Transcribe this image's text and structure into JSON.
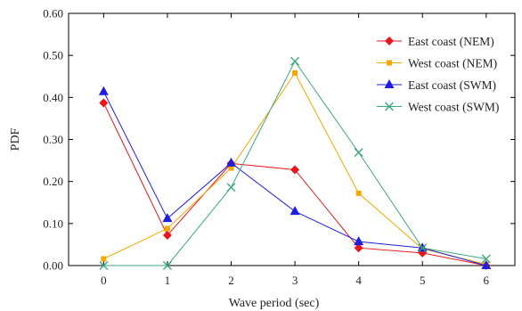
{
  "chart_data": {
    "type": "line",
    "xlabel": "Wave period (sec)",
    "ylabel": "PDF",
    "x": [
      0,
      1,
      2,
      3,
      4,
      5,
      6
    ],
    "xlim": [
      -0.55,
      6.45
    ],
    "ylim": [
      0,
      0.6
    ],
    "x_ticks": [
      "0",
      "1",
      "2",
      "3",
      "4",
      "5",
      "6"
    ],
    "y_ticks": [
      "0.00",
      "0.10",
      "0.20",
      "0.30",
      "0.40",
      "0.50",
      "0.60"
    ],
    "grid": false,
    "legend_position": "top-right",
    "series": [
      {
        "name": "East coast (NEM)",
        "color": "#e8161b",
        "marker": "diamond",
        "values": [
          0.387,
          0.072,
          0.243,
          0.228,
          0.042,
          0.03,
          0.0
        ]
      },
      {
        "name": "West coast (NEM)",
        "color": "#f5a800",
        "marker": "square",
        "values": [
          0.016,
          0.088,
          0.232,
          0.458,
          0.172,
          0.04,
          0.003
        ]
      },
      {
        "name": "East coast (SWM)",
        "color": "#1e1edc",
        "marker": "triangle",
        "values": [
          0.414,
          0.112,
          0.244,
          0.129,
          0.057,
          0.042,
          0.0
        ]
      },
      {
        "name": "West coast (SWM)",
        "color": "#3da87a",
        "marker": "x",
        "values": [
          0.0,
          0.0,
          0.186,
          0.486,
          0.269,
          0.042,
          0.016
        ]
      }
    ]
  }
}
